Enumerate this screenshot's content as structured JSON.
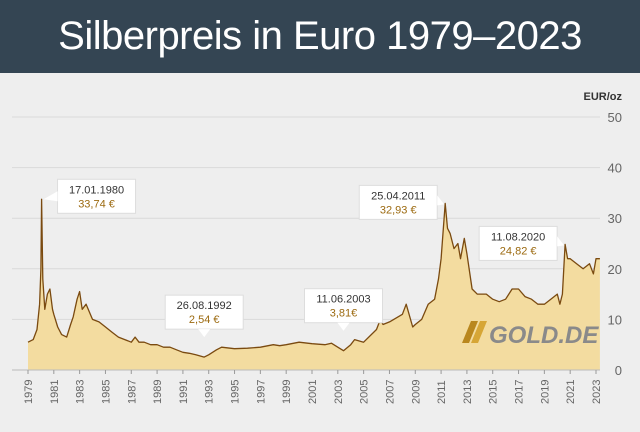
{
  "title": "Silberpreis in Euro 1979–2023",
  "colors": {
    "header_bg": "#344553",
    "background": "#eeeeee",
    "area_fill": "#f3dca0",
    "line": "#7a4a10",
    "grid": "#d9d9d9",
    "axis_text": "#666666",
    "annotation_value": "#9c6a10"
  },
  "logo": {
    "text": "GOLD.DE"
  },
  "chart_data": {
    "type": "area",
    "title": "Silberpreis in Euro 1979–2023",
    "ylabel": "EUR/oz",
    "xlabel": "",
    "ylim": [
      0,
      50
    ],
    "xlim": [
      1979,
      2023
    ],
    "y_ticks": [
      "0",
      "10",
      "20",
      "30",
      "40",
      "50"
    ],
    "x_ticks": [
      "1979",
      "1981",
      "1983",
      "1985",
      "1987",
      "1989",
      "1991",
      "1993",
      "1995",
      "1997",
      "1999",
      "2001",
      "2003",
      "2005",
      "2007",
      "2009",
      "2011",
      "2013",
      "2015",
      "2017",
      "2019",
      "2021",
      "2023"
    ],
    "grid": "horizontal",
    "series": [
      {
        "name": "Silberpreis",
        "x": [
          1979.0,
          1979.4,
          1979.7,
          1979.9,
          1980.0,
          1980.05,
          1980.15,
          1980.3,
          1980.5,
          1980.7,
          1980.9,
          1981.0,
          1981.3,
          1981.6,
          1982.0,
          1982.3,
          1982.5,
          1982.8,
          1983.0,
          1983.2,
          1983.5,
          1984.0,
          1984.5,
          1985.0,
          1985.5,
          1986.0,
          1986.5,
          1987.0,
          1987.3,
          1987.6,
          1988.0,
          1988.5,
          1989.0,
          1989.5,
          1990.0,
          1990.5,
          1991.0,
          1991.5,
          1992.0,
          1992.65,
          1993.0,
          1993.3,
          1993.6,
          1994.0,
          1995.0,
          1996.0,
          1997.0,
          1998.0,
          1998.5,
          1999.0,
          2000.0,
          2001.0,
          2002.0,
          2002.5,
          2003.0,
          2003.44,
          2004.0,
          2004.3,
          2005.0,
          2006.0,
          2006.3,
          2006.5,
          2007.0,
          2008.0,
          2008.3,
          2008.8,
          2009.0,
          2009.5,
          2010.0,
          2010.5,
          2010.8,
          2011.0,
          2011.32,
          2011.5,
          2011.7,
          2012.0,
          2012.3,
          2012.5,
          2012.8,
          2013.0,
          2013.4,
          2013.8,
          2014.0,
          2014.5,
          2015.0,
          2015.5,
          2016.0,
          2016.5,
          2017.0,
          2017.5,
          2018.0,
          2018.5,
          2019.0,
          2019.5,
          2020.0,
          2020.2,
          2020.4,
          2020.61,
          2020.8,
          2021.0,
          2021.5,
          2022.0,
          2022.5,
          2022.8,
          2023.0,
          2023.3
        ],
        "values": [
          5.5,
          6.0,
          8.0,
          13.0,
          20.0,
          33.74,
          18.0,
          12.0,
          15.0,
          16.0,
          12.0,
          11.0,
          8.5,
          7.0,
          6.5,
          9.0,
          10.5,
          14.0,
          15.5,
          12.0,
          13.0,
          10.0,
          9.5,
          8.5,
          7.5,
          6.5,
          6.0,
          5.5,
          6.5,
          5.5,
          5.5,
          5.0,
          5.0,
          4.5,
          4.5,
          4.0,
          3.5,
          3.3,
          3.0,
          2.54,
          3.0,
          3.5,
          4.0,
          4.5,
          4.2,
          4.3,
          4.5,
          5.0,
          4.8,
          5.0,
          5.5,
          5.2,
          5.0,
          5.3,
          4.5,
          3.81,
          5.0,
          6.0,
          5.5,
          8.0,
          10.0,
          9.0,
          9.5,
          11.0,
          13.0,
          8.5,
          9.0,
          10.0,
          13.0,
          14.0,
          18.0,
          22.0,
          32.93,
          28.0,
          27.0,
          24.0,
          25.0,
          22.0,
          26.0,
          23.0,
          16.0,
          15.0,
          15.0,
          15.0,
          14.0,
          13.5,
          14.0,
          16.0,
          16.0,
          14.5,
          14.0,
          13.0,
          13.0,
          14.0,
          15.0,
          13.0,
          15.0,
          24.82,
          22.0,
          22.0,
          21.0,
          20.0,
          21.0,
          19.0,
          22.0,
          22.0
        ]
      }
    ],
    "annotations": [
      {
        "date": "17.01.1980",
        "value": "33,74 €",
        "x": 1980.05,
        "y": 33.74
      },
      {
        "date": "26.08.1992",
        "value": "2,54 €",
        "x": 1992.65,
        "y": 2.54
      },
      {
        "date": "11.06.2003",
        "value": "3,81€",
        "x": 2003.44,
        "y": 3.81
      },
      {
        "date": "25.04.2011",
        "value": "32,93 €",
        "x": 2011.32,
        "y": 32.93
      },
      {
        "date": "11.08.2020",
        "value": "24,82 €",
        "x": 2020.61,
        "y": 24.82
      }
    ]
  }
}
